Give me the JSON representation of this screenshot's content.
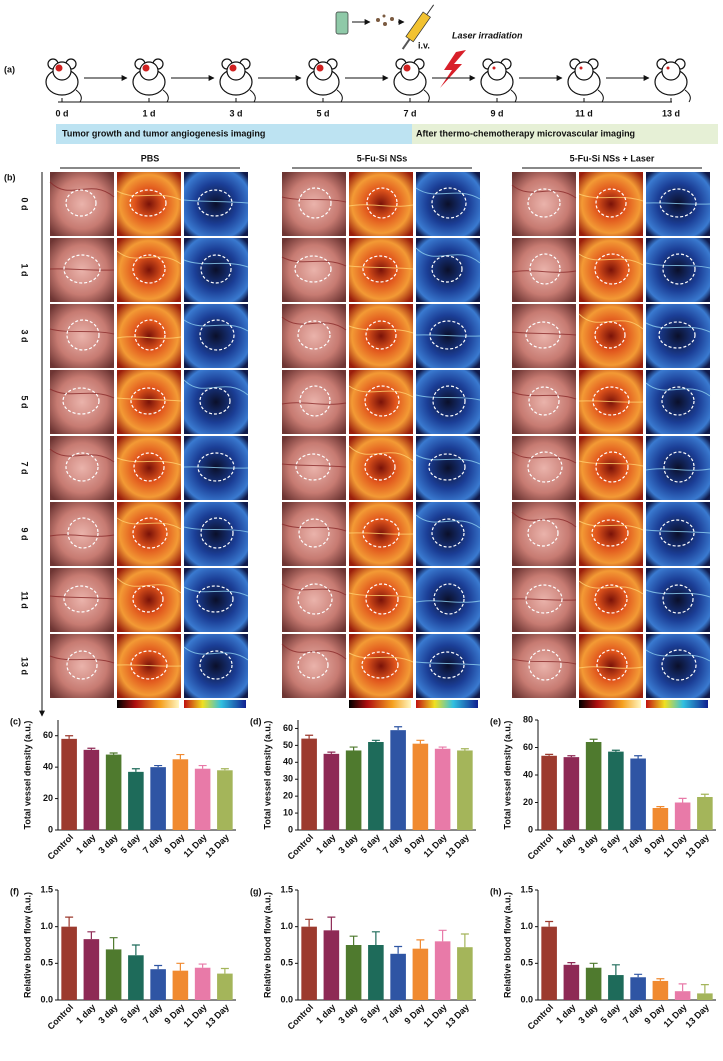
{
  "header": {
    "a": "(a)",
    "b": "(b)"
  },
  "timeline": {
    "days": [
      "0 d",
      "1 d",
      "3 d",
      "5 d",
      "7 d",
      "9 d",
      "11 d",
      "13 d"
    ],
    "injection": "i.v.",
    "laser": "Laser irradiation",
    "band1": "Tumor growth and tumor angiogenesis imaging",
    "band2": "After thermo-chemotherapy microvascular imaging"
  },
  "grid": {
    "groups": [
      "PBS",
      "5-Fu-Si NSs",
      "5-Fu-Si NSs + Laser"
    ],
    "rows": [
      "0 d",
      "1 d",
      "3 d",
      "5 d",
      "7 d",
      "9 d",
      "11 d",
      "13 d"
    ]
  },
  "chart_data": [
    {
      "type": "bar",
      "panel": "(c)",
      "ylabel": "Total vessel density (a.u.)",
      "categories": [
        "Control",
        "1 day",
        "3 day",
        "5 day",
        "7 day",
        "9 Day",
        "11 Day",
        "13 Day"
      ],
      "values": [
        58,
        51,
        48,
        37,
        40,
        45,
        39,
        38
      ],
      "errors": [
        2,
        1,
        1,
        2,
        1,
        3,
        2,
        1
      ],
      "colors": [
        "#9c3a2e",
        "#8e2a55",
        "#4f7a2e",
        "#1e6b5a",
        "#2f55a4",
        "#f08a30",
        "#e87aa8",
        "#a4b55a"
      ],
      "ylim": [
        0,
        70
      ],
      "yticks": [
        0,
        20,
        40,
        60
      ]
    },
    {
      "type": "bar",
      "panel": "(d)",
      "ylabel": "Total vessel density (a.u.)",
      "categories": [
        "Control",
        "1 day",
        "3 day",
        "5 day",
        "7 day",
        "9 Day",
        "11 Day",
        "13 Day"
      ],
      "values": [
        54,
        45,
        47,
        52,
        59,
        51,
        48,
        47
      ],
      "errors": [
        2,
        1,
        2,
        1,
        2,
        2,
        1,
        1
      ],
      "colors": [
        "#9c3a2e",
        "#8e2a55",
        "#4f7a2e",
        "#1e6b5a",
        "#2f55a4",
        "#f08a30",
        "#e87aa8",
        "#a4b55a"
      ],
      "ylim": [
        0,
        65
      ],
      "yticks": [
        0,
        10,
        20,
        30,
        40,
        50,
        60
      ]
    },
    {
      "type": "bar",
      "panel": "(e)",
      "ylabel": "Total vessel density (a.u.)",
      "categories": [
        "Control",
        "1 day",
        "3 day",
        "5 day",
        "7 day",
        "9 Day",
        "11 Day",
        "13 Day"
      ],
      "values": [
        54,
        53,
        64,
        57,
        52,
        16,
        20,
        24
      ],
      "errors": [
        1,
        1,
        2,
        1,
        2,
        1,
        3,
        2
      ],
      "colors": [
        "#9c3a2e",
        "#8e2a55",
        "#4f7a2e",
        "#1e6b5a",
        "#2f55a4",
        "#f08a30",
        "#e87aa8",
        "#a4b55a"
      ],
      "ylim": [
        0,
        80
      ],
      "yticks": [
        0,
        20,
        40,
        60,
        80
      ]
    },
    {
      "type": "bar",
      "panel": "(f)",
      "ylabel": "Relative blood flow  (a.u.)",
      "categories": [
        "Control",
        "1 day",
        "3 day",
        "5 day",
        "7 day",
        "9 Day",
        "11 Day",
        "13 Day"
      ],
      "values": [
        1.0,
        0.83,
        0.69,
        0.61,
        0.42,
        0.4,
        0.44,
        0.36
      ],
      "errors": [
        0.13,
        0.1,
        0.16,
        0.14,
        0.05,
        0.1,
        0.05,
        0.07
      ],
      "colors": [
        "#9c3a2e",
        "#8e2a55",
        "#4f7a2e",
        "#1e6b5a",
        "#2f55a4",
        "#f08a30",
        "#e87aa8",
        "#a4b55a"
      ],
      "ylim": [
        0,
        1.5
      ],
      "yticks": [
        {
          "value": 0,
          "label": "0.0"
        },
        0.5,
        {
          "value": 1,
          "label": "1.0"
        },
        1.5
      ]
    },
    {
      "type": "bar",
      "panel": "(g)",
      "ylabel": "Relative blood flow  (a.u.)",
      "categories": [
        "Control",
        "1 day",
        "3 day",
        "5 day",
        "7 day",
        "9 Day",
        "11 Day",
        "13 Day"
      ],
      "values": [
        1.0,
        0.95,
        0.75,
        0.75,
        0.63,
        0.7,
        0.8,
        0.72
      ],
      "errors": [
        0.1,
        0.18,
        0.12,
        0.18,
        0.1,
        0.12,
        0.15,
        0.18
      ],
      "colors": [
        "#9c3a2e",
        "#8e2a55",
        "#4f7a2e",
        "#1e6b5a",
        "#2f55a4",
        "#f08a30",
        "#e87aa8",
        "#a4b55a"
      ],
      "ylim": [
        0,
        1.5
      ],
      "yticks": [
        {
          "value": 0,
          "label": "0.0"
        },
        0.5,
        {
          "value": 1,
          "label": "1.0"
        },
        1.5
      ]
    },
    {
      "type": "bar",
      "panel": "(h)",
      "ylabel": "Relative blood flow (a.u.)",
      "categories": [
        "Control",
        "1 day",
        "3 day",
        "5 day",
        "7 day",
        "9 Day",
        "11 Day",
        "13 Day"
      ],
      "values": [
        1.0,
        0.48,
        0.44,
        0.34,
        0.31,
        0.26,
        0.12,
        0.09
      ],
      "errors": [
        0.07,
        0.03,
        0.06,
        0.14,
        0.04,
        0.03,
        0.1,
        0.12
      ],
      "colors": [
        "#9c3a2e",
        "#8e2a55",
        "#4f7a2e",
        "#1e6b5a",
        "#2f55a4",
        "#f08a30",
        "#e87aa8",
        "#a4b55a"
      ],
      "ylim": [
        0,
        1.5
      ],
      "yticks": [
        {
          "value": 0,
          "label": "0.0"
        },
        0.5,
        {
          "value": 1,
          "label": "1.0"
        },
        1.5
      ]
    }
  ]
}
